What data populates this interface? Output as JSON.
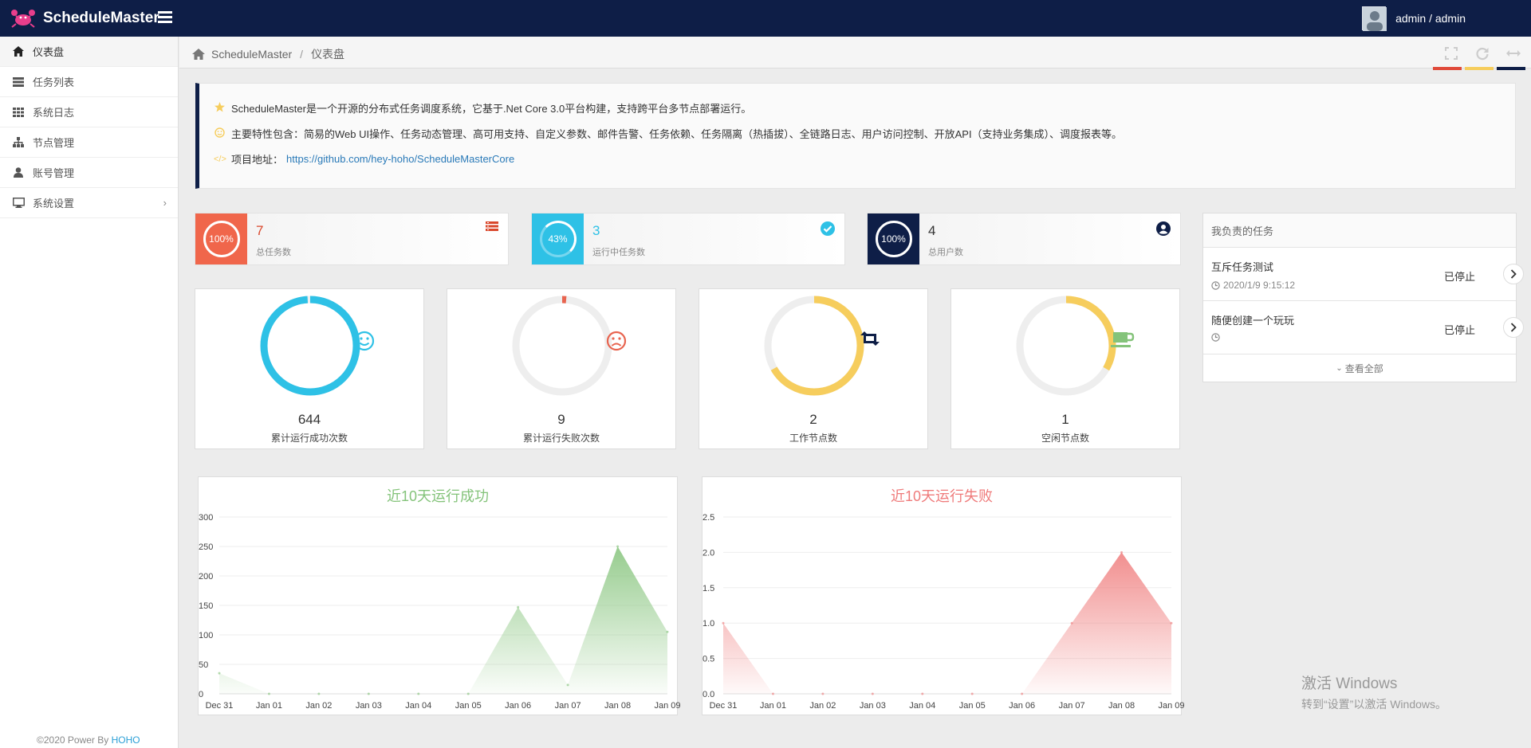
{
  "app": {
    "brand": "ScheduleMaster",
    "user": "admin / admin"
  },
  "sidebar": {
    "items": [
      {
        "label": "仪表盘",
        "icon": "home-icon"
      },
      {
        "label": "任务列表",
        "icon": "server-icon"
      },
      {
        "label": "系统日志",
        "icon": "grid-icon"
      },
      {
        "label": "节点管理",
        "icon": "sitemap-icon"
      },
      {
        "label": "账号管理",
        "icon": "user-icon"
      },
      {
        "label": "系统设置",
        "icon": "desktop-icon"
      }
    ],
    "footer_prefix": "©2020 Power By ",
    "footer_link": "HOHO"
  },
  "breadcrumb": {
    "root": "ScheduleMaster",
    "sep": "/",
    "current": "仪表盘"
  },
  "colors": {
    "navy": "#0e1e47",
    "red": "#f0664b",
    "cyan": "#2ec1e6",
    "yellow": "#f6cd5d",
    "green": "#84c37a",
    "fail": "#e8644f"
  },
  "intro": {
    "line1": "ScheduleMaster是一个开源的分布式任务调度系统，它基于.Net Core 3.0平台构建，支持跨平台多节点部署运行。",
    "line2": "主要特性包含：简易的Web UI操作、任务动态管理、高可用支持、自定义参数、邮件告警、任务依赖、任务隔离（热插拔）、全链路日志、用户访问控制、开放API（支持业务集成）、调度报表等。",
    "line3_label": "项目地址：",
    "line3_link": "https://github.com/hey-hoho/ScheduleMasterCore"
  },
  "stats": [
    {
      "percent": "100%",
      "value": "7",
      "label": "总任务数"
    },
    {
      "percent": "43%",
      "value": "3",
      "label": "运行中任务数"
    },
    {
      "percent": "100%",
      "value": "4",
      "label": "总用户数"
    }
  ],
  "gauges": [
    {
      "value": "644",
      "label": "累计运行成功次数",
      "fraction": 0.99,
      "icon": "smile-icon"
    },
    {
      "value": "9",
      "label": "累计运行失败次数",
      "fraction": 0.014,
      "icon": "frown-icon"
    },
    {
      "value": "2",
      "label": "工作节点数",
      "fraction": 0.667,
      "icon": "retweet-icon"
    },
    {
      "value": "1",
      "label": "空闲节点数",
      "fraction": 0.333,
      "icon": "coffee-icon"
    }
  ],
  "tasks": {
    "header": "我负责的任务",
    "items": [
      {
        "title": "互斥任务测试",
        "date": "2020/1/9 9:15:12",
        "status": "已停止"
      },
      {
        "title": "随便创建一个玩玩",
        "date": "",
        "status": "已停止"
      }
    ],
    "view_all": "查看全部"
  },
  "chart_data": [
    {
      "type": "area",
      "title": "近10天运行成功",
      "categories": [
        "Dec 31",
        "Jan 01",
        "Jan 02",
        "Jan 03",
        "Jan 04",
        "Jan 05",
        "Jan 06",
        "Jan 07",
        "Jan 08",
        "Jan 09"
      ],
      "values": [
        35,
        0,
        0,
        0,
        0,
        0,
        147,
        15,
        250,
        105
      ],
      "ylim": [
        0,
        300
      ],
      "yticks": [
        "0",
        "50",
        "100",
        "150",
        "200",
        "250",
        "300"
      ],
      "color": "#84c37a"
    },
    {
      "type": "area",
      "title": "近10天运行失败",
      "categories": [
        "Dec 31",
        "Jan 01",
        "Jan 02",
        "Jan 03",
        "Jan 04",
        "Jan 05",
        "Jan 06",
        "Jan 07",
        "Jan 08",
        "Jan 09"
      ],
      "values": [
        1,
        0,
        0,
        0,
        0,
        0,
        0,
        1,
        2,
        1
      ],
      "ylim": [
        0,
        2.5
      ],
      "yticks": [
        "0.0",
        "0.5",
        "1.0",
        "1.5",
        "2.0",
        "2.5"
      ],
      "color": "#ef7b7b"
    }
  ],
  "watermark": {
    "line1": "激活 Windows",
    "line2": "转到“设置”以激活 Windows。"
  }
}
